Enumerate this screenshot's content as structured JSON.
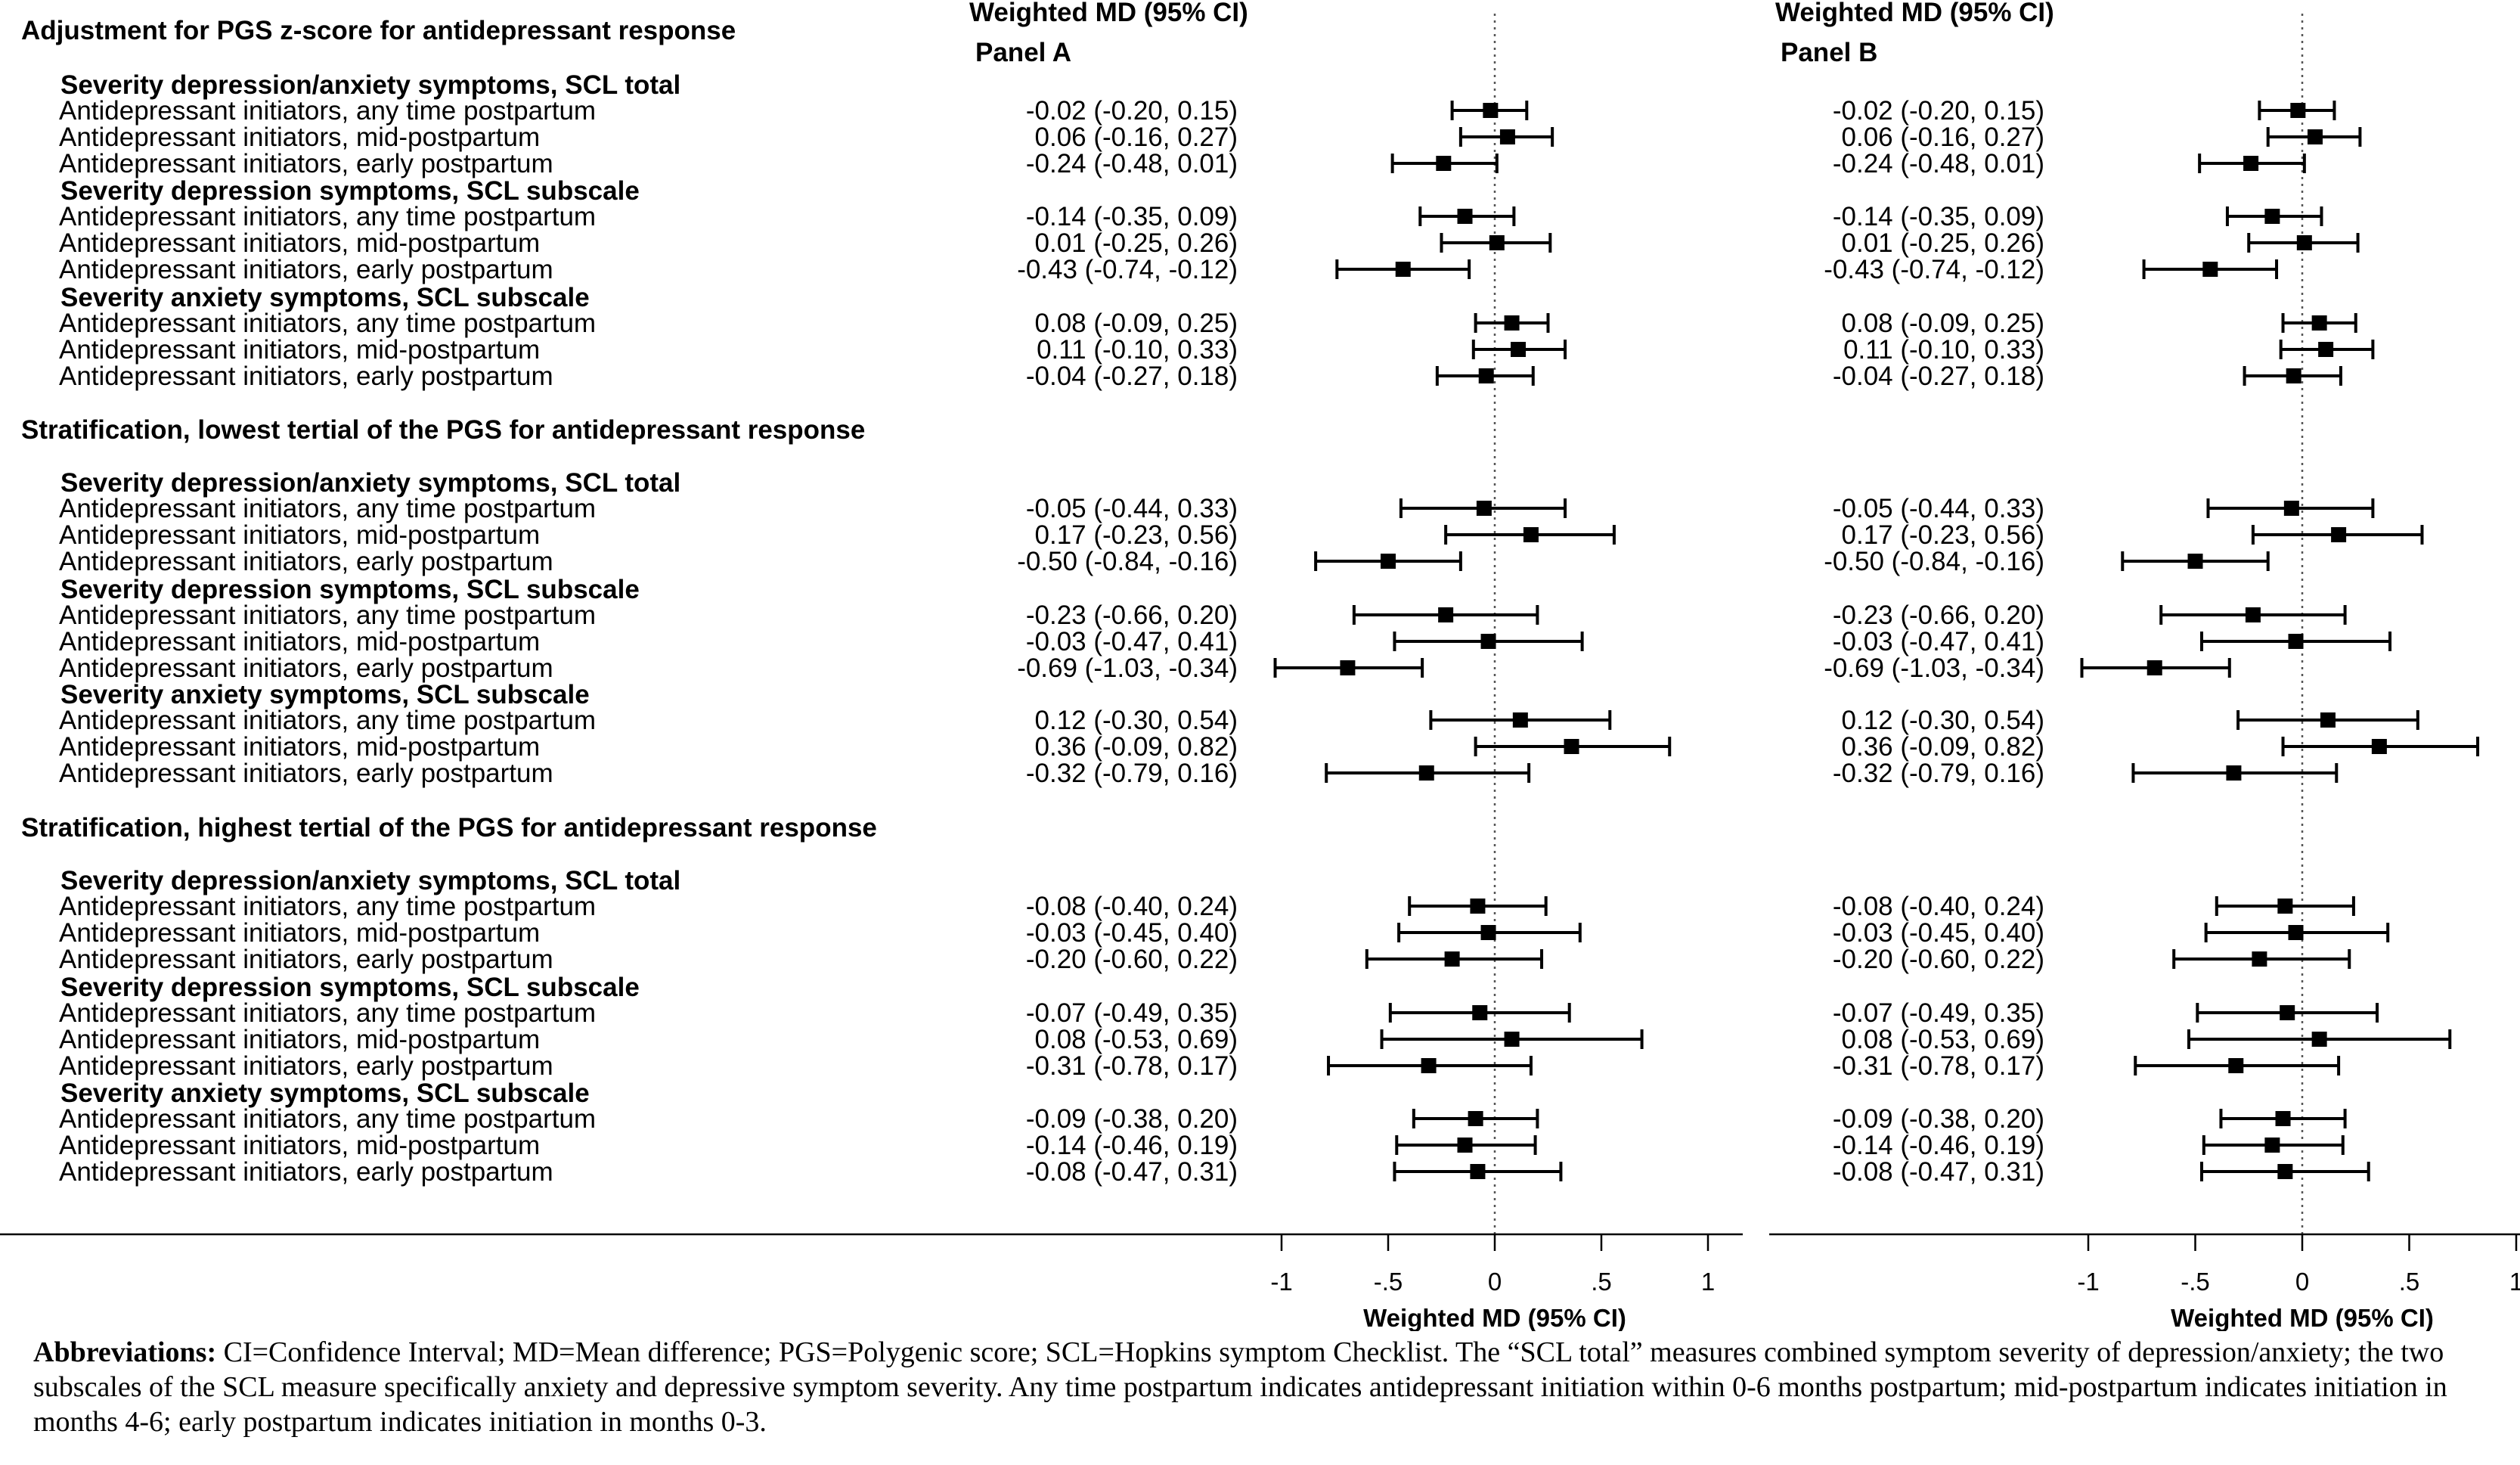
{
  "chart_data": {
    "type": "forest",
    "panels": [
      {
        "header": "Weighted MD (95% CI)",
        "name": "Panel A",
        "xlabel": "Weighted MD (95% CI)"
      },
      {
        "header": "Weighted MD (95% CI)",
        "name": "Panel B",
        "xlabel": "Weighted MD (95% CI)"
      }
    ],
    "xlim": [
      -1,
      1
    ],
    "xticks": [
      -1,
      -0.5,
      0,
      0.5,
      1
    ],
    "xtick_labels": [
      "-1",
      "-.5",
      "0",
      ".5",
      "1"
    ],
    "reference_line": 0,
    "sections": [
      {
        "title": "Adjustment for PGS z-score for antidepressant response",
        "groups": [
          {
            "label": "Severity depression/anxiety symptoms, SCL total",
            "rows": [
              {
                "label": "Antidepressant initiators, any time postpartum",
                "est": -0.02,
                "lo": -0.2,
                "hi": 0.15,
                "text": "-0.02 (-0.20,  0.15)"
              },
              {
                "label": "Antidepressant initiators, mid-postpartum",
                "est": 0.06,
                "lo": -0.16,
                "hi": 0.27,
                "text": "0.06 (-0.16,  0.27)"
              },
              {
                "label": "Antidepressant initiators, early postpartum",
                "est": -0.24,
                "lo": -0.48,
                "hi": 0.01,
                "text": "-0.24 (-0.48,  0.01)"
              }
            ]
          },
          {
            "label": "Severity depression symptoms, SCL subscale",
            "rows": [
              {
                "label": "Antidepressant initiators, any time postpartum",
                "est": -0.14,
                "lo": -0.35,
                "hi": 0.09,
                "text": "-0.14 (-0.35,  0.09)"
              },
              {
                "label": "Antidepressant initiators, mid-postpartum",
                "est": 0.01,
                "lo": -0.25,
                "hi": 0.26,
                "text": "0.01 (-0.25,  0.26)"
              },
              {
                "label": "Antidepressant initiators, early postpartum",
                "est": -0.43,
                "lo": -0.74,
                "hi": -0.12,
                "text": "-0.43 (-0.74, -0.12)"
              }
            ]
          },
          {
            "label": "Severity anxiety symptoms, SCL subscale",
            "rows": [
              {
                "label": "Antidepressant initiators, any time  postpartum",
                "est": 0.08,
                "lo": -0.09,
                "hi": 0.25,
                "text": "0.08 (-0.09,  0.25)"
              },
              {
                "label": "Antidepressant initiators, mid-postpartum",
                "est": 0.11,
                "lo": -0.1,
                "hi": 0.33,
                "text": "0.11 (-0.10,  0.33)"
              },
              {
                "label": "Antidepressant initiators, early postpartum",
                "est": -0.04,
                "lo": -0.27,
                "hi": 0.18,
                "text": "-0.04 (-0.27,  0.18)"
              }
            ]
          }
        ]
      },
      {
        "title": "Stratification, lowest tertial of the PGS for antidepressant response",
        "groups": [
          {
            "label": "Severity depression/anxiety symptoms, SCL total",
            "rows": [
              {
                "label": "Antidepressant initiators, any time postpartum",
                "est": -0.05,
                "lo": -0.44,
                "hi": 0.33,
                "text": "-0.05 (-0.44,  0.33)"
              },
              {
                "label": "Antidepressant initiators, mid-postpartum",
                "est": 0.17,
                "lo": -0.23,
                "hi": 0.56,
                "text": "0.17 (-0.23,  0.56)"
              },
              {
                "label": "Antidepressant initiators, early postpartum",
                "est": -0.5,
                "lo": -0.84,
                "hi": -0.16,
                "text": "-0.50 (-0.84, -0.16)"
              }
            ]
          },
          {
            "label": "Severity depression symptoms, SCL subscale",
            "rows": [
              {
                "label": "Antidepressant initiators, any time postpartum",
                "est": -0.23,
                "lo": -0.66,
                "hi": 0.2,
                "text": "-0.23 (-0.66,  0.20)"
              },
              {
                "label": "Antidepressant initiators, mid-postpartum",
                "est": -0.03,
                "lo": -0.47,
                "hi": 0.41,
                "text": "-0.03 (-0.47,  0.41)"
              },
              {
                "label": "Antidepressant initiators, early postpartum",
                "est": -0.69,
                "lo": -1.03,
                "hi": -0.34,
                "text": "-0.69 (-1.03, -0.34)"
              }
            ]
          },
          {
            "label": "Severity anxiety symptoms, SCL subscale",
            "rows": [
              {
                "label": "Antidepressant initiators, any time  postpartum",
                "est": 0.12,
                "lo": -0.3,
                "hi": 0.54,
                "text": "0.12 (-0.30,  0.54)"
              },
              {
                "label": "Antidepressant initiators, mid-postpartum",
                "est": 0.36,
                "lo": -0.09,
                "hi": 0.82,
                "text": "0.36 (-0.09,  0.82)"
              },
              {
                "label": "Antidepressant initiators, early postpartum",
                "est": -0.32,
                "lo": -0.79,
                "hi": 0.16,
                "text": "-0.32 (-0.79,  0.16)"
              }
            ]
          }
        ]
      },
      {
        "title": "Stratification, highest tertial of the PGS for antidepressant response",
        "groups": [
          {
            "label": "Severity depression/anxiety symptoms, SCL total",
            "rows": [
              {
                "label": "Antidepressant initiators, any time postpartum",
                "est": -0.08,
                "lo": -0.4,
                "hi": 0.24,
                "text": "-0.08 (-0.40,  0.24)"
              },
              {
                "label": "Antidepressant initiators, mid-postpartum",
                "est": -0.03,
                "lo": -0.45,
                "hi": 0.4,
                "text": "-0.03 (-0.45,  0.40)"
              },
              {
                "label": "Antidepressant initiators, early postpartum",
                "est": -0.2,
                "lo": -0.6,
                "hi": 0.22,
                "text": "-0.20 (-0.60,  0.22)"
              }
            ]
          },
          {
            "label": "Severity depression symptoms, SCL subscale",
            "rows": [
              {
                "label": "Antidepressant initiators, any time postpartum",
                "est": -0.07,
                "lo": -0.49,
                "hi": 0.35,
                "text": "-0.07 (-0.49,  0.35)"
              },
              {
                "label": "Antidepressant initiators, mid-postpartum",
                "est": 0.08,
                "lo": -0.53,
                "hi": 0.69,
                "text": "0.08 (-0.53,  0.69)"
              },
              {
                "label": "Antidepressant initiators, early postpartum",
                "est": -0.31,
                "lo": -0.78,
                "hi": 0.17,
                "text": "-0.31 (-0.78,  0.17)"
              }
            ]
          },
          {
            "label": "Severity anxiety symptoms, SCL subscale",
            "rows": [
              {
                "label": "Antidepressant initiators, any time  postpartum",
                "est": -0.09,
                "lo": -0.38,
                "hi": 0.2,
                "text": "-0.09 (-0.38,  0.20)"
              },
              {
                "label": "Antidepressant initiators, mid-postpartum",
                "est": -0.14,
                "lo": -0.46,
                "hi": 0.19,
                "text": "-0.14 (-0.46,  0.19)"
              },
              {
                "label": "Antidepressant initiators, early postpartum",
                "est": -0.08,
                "lo": -0.47,
                "hi": 0.31,
                "text": "-0.08 (-0.47,  0.31)"
              }
            ]
          }
        ]
      }
    ]
  },
  "footnote": {
    "lead": "Abbreviations:",
    "text": " CI=Confidence Interval; MD=Mean difference; PGS=Polygenic score; SCL=Hopkins symptom Checklist. The “SCL total” measures combined symptom severity of depression/anxiety; the two subscales of the SCL measure specifically anxiety and depressive symptom severity. Any time postpartum indicates antidepressant initiation within 0-6 months postpartum; mid-postpartum indicates initiation in months 4-6; early postpartum indicates initiation in months 0-3."
  }
}
